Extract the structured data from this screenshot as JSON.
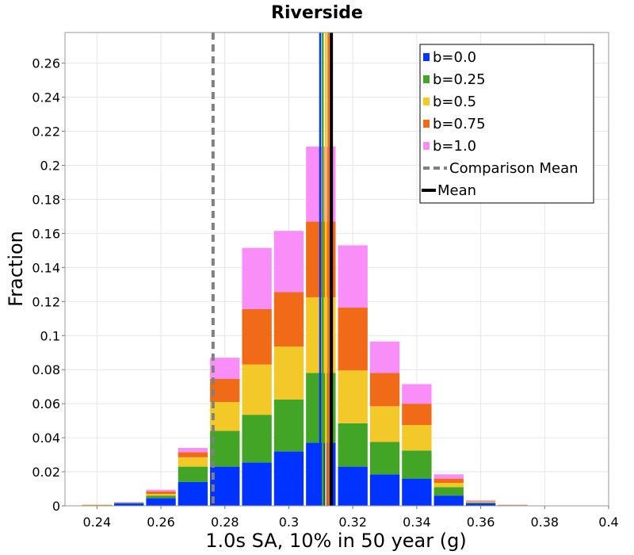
{
  "chart_data": {
    "type": "bar",
    "stacked": true,
    "title": "Riverside",
    "xlabel": "1.0s SA, 10% in 50 year (g)",
    "ylabel": "Fraction",
    "xlim": [
      0.23,
      0.4
    ],
    "ylim": [
      0,
      0.278
    ],
    "grid": true,
    "legend_position": "top-right",
    "bin_width": 0.01,
    "bin_centers": [
      0.24,
      0.25,
      0.26,
      0.27,
      0.28,
      0.29,
      0.3,
      0.31,
      0.32,
      0.33,
      0.34,
      0.35,
      0.36,
      0.37,
      0.38,
      0.39
    ],
    "series": [
      {
        "name": "b=0.0",
        "color": "#0033ff",
        "values": [
          0.0003,
          0.0015,
          0.0045,
          0.014,
          0.023,
          0.0255,
          0.032,
          0.037,
          0.023,
          0.0185,
          0.016,
          0.006,
          0.0015,
          0.0003,
          0.0001,
          0.0
        ]
      },
      {
        "name": "b=0.25",
        "color": "#43a526",
        "values": [
          0.0001,
          0.0003,
          0.0015,
          0.009,
          0.021,
          0.028,
          0.0305,
          0.041,
          0.0255,
          0.019,
          0.0165,
          0.005,
          0.0005,
          0.0001,
          0.0,
          0.0
        ]
      },
      {
        "name": "b=0.5",
        "color": "#f2c928",
        "values": [
          0.0001,
          0.0002,
          0.001,
          0.0055,
          0.017,
          0.0295,
          0.031,
          0.0445,
          0.031,
          0.021,
          0.015,
          0.0025,
          0.0004,
          0.0001,
          0.0,
          0.0
        ]
      },
      {
        "name": "b=0.75",
        "color": "#f06a18",
        "values": [
          0.0001,
          0.0001,
          0.0015,
          0.003,
          0.0135,
          0.0325,
          0.032,
          0.0445,
          0.037,
          0.0195,
          0.0125,
          0.0025,
          0.0003,
          0.0001,
          0.0,
          0.0
        ]
      },
      {
        "name": "b=1.0",
        "color": "#fa8ef8",
        "values": [
          0.0,
          0.0001,
          0.001,
          0.0025,
          0.0125,
          0.036,
          0.036,
          0.044,
          0.0365,
          0.0185,
          0.0115,
          0.0025,
          0.0005,
          0.0001,
          0.0,
          0.0
        ]
      }
    ],
    "mean_lines": [
      {
        "x": 0.3098,
        "color": "#0033ff"
      },
      {
        "x": 0.3106,
        "color": "#43a526"
      },
      {
        "x": 0.3116,
        "color": "#f2c928"
      },
      {
        "x": 0.3124,
        "color": "#f06a18"
      },
      {
        "x": 0.3132,
        "color": "#fa8ef8"
      }
    ],
    "comparison_mean": {
      "label": "Comparison Mean",
      "x": 0.2763,
      "color": "#808080"
    },
    "mean": {
      "label": "Mean",
      "x": 0.3133,
      "color": "#000000"
    },
    "x_ticks": [
      "0.24",
      "0.26",
      "0.28",
      "0.3",
      "0.32",
      "0.34",
      "0.36",
      "0.38",
      "0.4"
    ],
    "y_ticks": [
      "0",
      "0.02",
      "0.04",
      "0.06",
      "0.08",
      "0.1",
      "0.12",
      "0.14",
      "0.16",
      "0.18",
      "0.2",
      "0.22",
      "0.24",
      "0.26"
    ]
  }
}
